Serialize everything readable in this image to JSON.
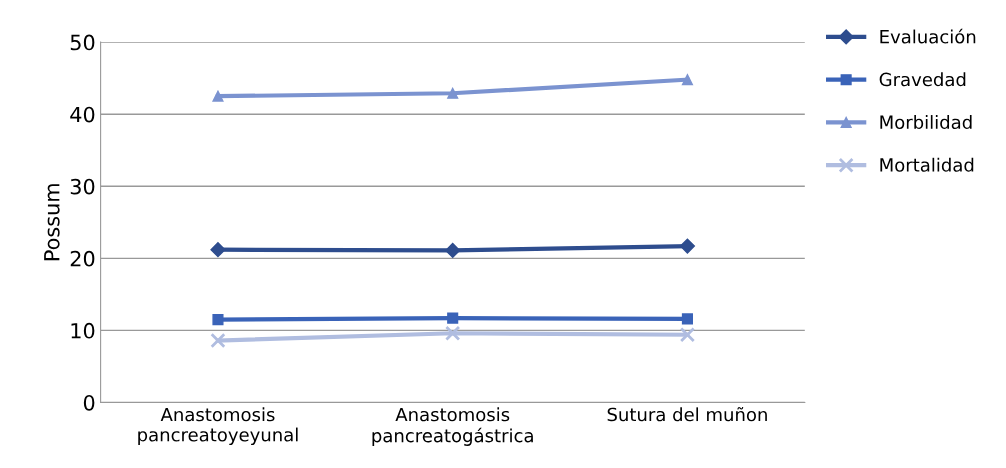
{
  "chart_data": {
    "type": "line",
    "ylabel": "Possum",
    "categories": [
      "Anastomosis\npancreatoyeyunal",
      "Anastomosis\npancreatogástrica",
      "Sutura del muñon"
    ],
    "series": [
      {
        "name": "Evaluación",
        "color": "#2e4d8e",
        "marker": "diamond",
        "values": [
          21.2,
          21.1,
          21.7
        ]
      },
      {
        "name": "Gravedad",
        "color": "#3a63b8",
        "marker": "square",
        "values": [
          11.5,
          11.7,
          11.6
        ]
      },
      {
        "name": "Morbilidad",
        "color": "#7b93d0",
        "marker": "triangle",
        "values": [
          42.5,
          42.9,
          44.8
        ]
      },
      {
        "name": "Mortalidad",
        "color": "#b0bde0",
        "marker": "cross",
        "values": [
          8.6,
          9.6,
          9.4
        ]
      }
    ],
    "ylim": [
      0,
      50
    ],
    "yticks": [
      0,
      10,
      20,
      30,
      40,
      50
    ],
    "grid": "y",
    "legend": "right",
    "line_style": "solid"
  }
}
